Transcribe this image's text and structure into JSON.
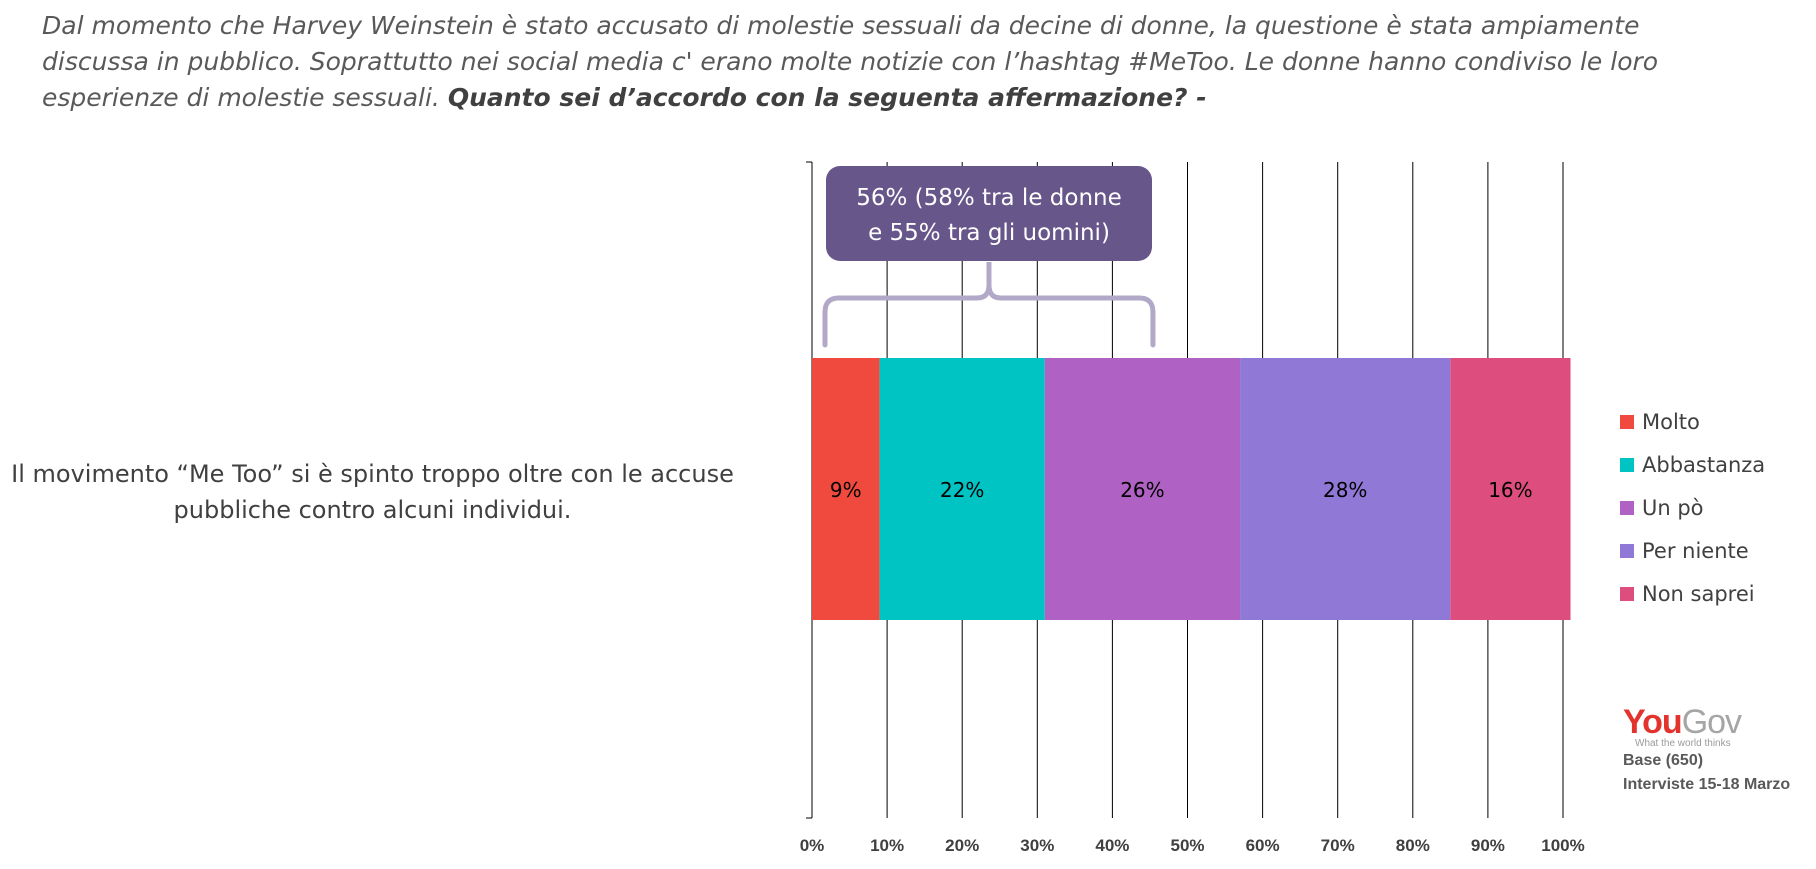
{
  "header": {
    "intro": "Dal momento che Harvey Weinstein è stato accusato di molestie sessuali da decine di donne, la questione è stata ampiamente discussa in pubblico. Soprattutto nei social media c' erano molte notizie con l’hashtag #MeToo. Le donne hanno condiviso le loro esperienze di molestie sessuali.",
    "question": "Quanto sei d’accordo con la seguenta affermazione? -"
  },
  "statement": "Il movimento “Me Too” si è spinto troppo oltre con le accuse pubbliche contro alcuni individui.",
  "callout": {
    "line1": "56% (58% tra le donne",
    "line2": "e 55% tra gli uomini)",
    "bracket_from": 0,
    "bracket_to": 45,
    "color": "#67568a",
    "bracket_color": "#b2a8c8"
  },
  "brand": {
    "logo_you": "You",
    "logo_gov": "Gov",
    "tagline": "What the world thinks",
    "base": "Base (650)",
    "dates": "Interviste 15-18 Marzo"
  },
  "chart_data": {
    "type": "bar",
    "orientation": "horizontal",
    "stacked": true,
    "categories": [
      "Il movimento “Me Too” si è spinto troppo oltre con le accuse pubbliche contro alcuni individui."
    ],
    "series": [
      {
        "name": "Molto",
        "values": [
          9
        ],
        "label": "9%",
        "color": "#f04a3e"
      },
      {
        "name": "Abbastanza",
        "values": [
          22
        ],
        "label": "22%",
        "color": "#00c4c4"
      },
      {
        "name": "Un pò",
        "values": [
          26
        ],
        "label": "26%",
        "color": "#b062c4"
      },
      {
        "name": "Per niente",
        "values": [
          28
        ],
        "label": "28%",
        "color": "#9078d6"
      },
      {
        "name": "Non saprei",
        "values": [
          16
        ],
        "label": "16%",
        "color": "#dd4e7e"
      }
    ],
    "xlim": [
      0,
      100
    ],
    "xticks": [
      "0%",
      "10%",
      "20%",
      "30%",
      "40%",
      "50%",
      "60%",
      "70%",
      "80%",
      "90%",
      "100%"
    ],
    "grid": true,
    "legend_position": "right"
  }
}
